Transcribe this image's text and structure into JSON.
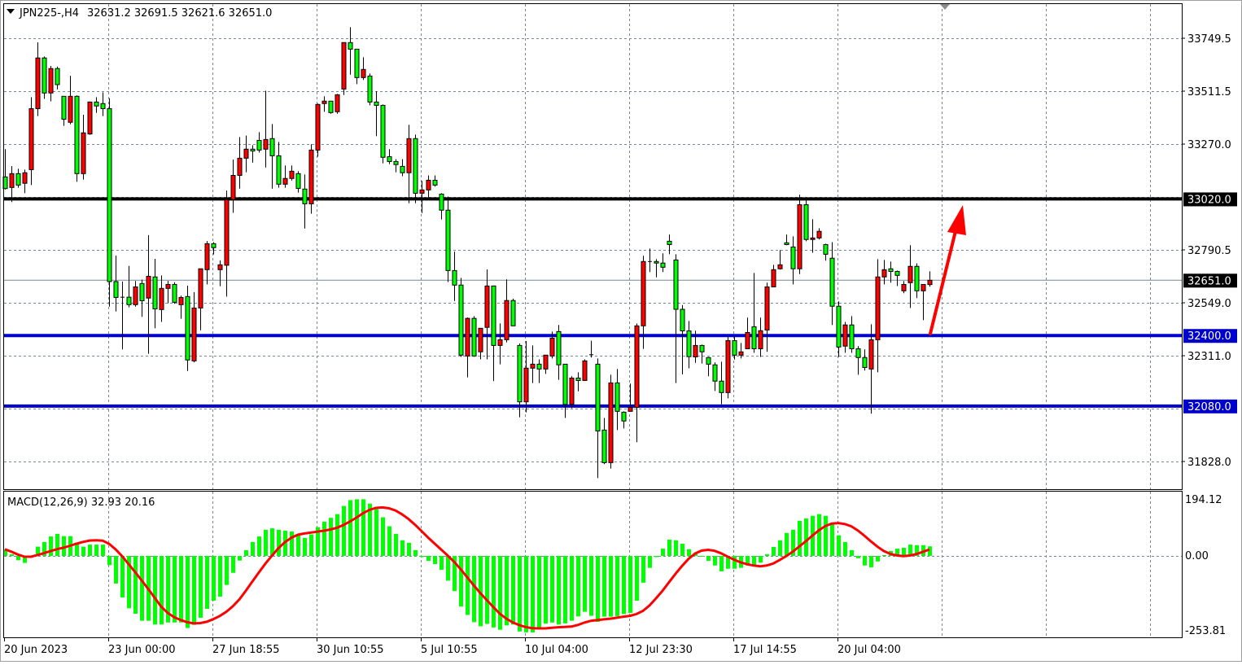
{
  "header": {
    "symbol": "JPN225-,H4",
    "ohlc_text": "32631.2 32691.5 32621.6 32651.0"
  },
  "macd_header": "MACD(12,26,9) 32.93 20.16",
  "colors": {
    "bull_body": "#ff0000",
    "bear_body": "#00ff00",
    "wick": "#000000",
    "grid": "#778899",
    "histogram": "#00ff00",
    "signal": "#ff0000",
    "resistance": "#000000",
    "support": "#0000cc",
    "arrow": "#ff0000"
  },
  "price_axis": {
    "ticks": [
      "33749.5",
      "33511.5",
      "33270.0",
      "32790.5",
      "32549.0",
      "32311.0",
      "31828.0"
    ],
    "current_price": "32651.0",
    "levels": [
      {
        "label": "33020.0",
        "value": 33020.0,
        "color": "#000000"
      },
      {
        "label": "32400.0",
        "value": 32400.0,
        "color": "#0000cc"
      },
      {
        "label": "32080.0",
        "value": 32080.0,
        "color": "#0000cc"
      }
    ]
  },
  "macd_axis": {
    "ticks": [
      "194.12",
      "0.00",
      "-253.81"
    ]
  },
  "time_axis": {
    "labels": [
      "20 Jun 2023",
      "23 Jun 00:00",
      "27 Jun 18:55",
      "30 Jun 10:55",
      "5 Jul 10:55",
      "10 Jul 04:00",
      "12 Jul 23:30",
      "17 Jul 14:55",
      "20 Jul 04:00"
    ]
  },
  "chart_data": [
    {
      "type": "candlestick",
      "title": "JPN225-,H4",
      "ylim": [
        31700,
        33850
      ],
      "grid": true,
      "ohlc": [
        [
          33120,
          33246,
          33063,
          33067
        ],
        [
          33072,
          33169,
          33006,
          33135
        ],
        [
          33135,
          33157,
          33071,
          33083
        ],
        [
          33091,
          33153,
          33046,
          33139
        ],
        [
          33153,
          33482,
          33083,
          33430
        ],
        [
          33430,
          33731,
          33396,
          33660
        ],
        [
          33660,
          33667,
          33474,
          33501
        ],
        [
          33501,
          33624,
          33463,
          33612
        ],
        [
          33612,
          33621,
          33517,
          33539
        ],
        [
          33486,
          33486,
          33352,
          33382
        ],
        [
          33368,
          33579,
          33359,
          33486
        ],
        [
          33486,
          33490,
          33098,
          33135
        ],
        [
          33135,
          33402,
          33108,
          33320
        ],
        [
          33315,
          33462,
          33311,
          33460
        ],
        [
          33460,
          33482,
          33411,
          33442
        ],
        [
          33453,
          33504,
          33396,
          33430
        ],
        [
          33430,
          33477,
          32531,
          32645
        ],
        [
          32645,
          32763,
          32509,
          32573
        ],
        [
          32573,
          32645,
          32337,
          32574
        ],
        [
          32574,
          32716,
          32528,
          32540
        ],
        [
          32540,
          32648,
          32531,
          32621
        ],
        [
          32636,
          32654,
          32485,
          32558
        ],
        [
          32570,
          32856,
          32317,
          32669
        ],
        [
          32666,
          32748,
          32433,
          32521
        ],
        [
          32518,
          32673,
          32462,
          32614
        ],
        [
          32614,
          32648,
          32547,
          32632
        ],
        [
          32632,
          32642,
          32544,
          32551
        ],
        [
          32540,
          32581,
          32476,
          32573
        ],
        [
          32577,
          32626,
          32239,
          32289
        ],
        [
          32285,
          32597,
          32278,
          32525
        ],
        [
          32525,
          32703,
          32424,
          32703
        ],
        [
          32699,
          32829,
          32632,
          32817
        ],
        [
          32817,
          32824,
          32768,
          32799
        ],
        [
          32699,
          32741,
          32624,
          32721
        ],
        [
          32719,
          33058,
          32577,
          33017
        ],
        [
          33017,
          33199,
          32957,
          33127
        ],
        [
          33127,
          33301,
          33067,
          33205
        ],
        [
          33205,
          33308,
          33141,
          33246
        ],
        [
          33246,
          33264,
          33185,
          33238
        ],
        [
          33286,
          33323,
          33231,
          33242
        ],
        [
          33246,
          33511,
          33163,
          33290
        ],
        [
          33294,
          33360,
          33067,
          33216
        ],
        [
          33216,
          33279,
          33071,
          33087
        ],
        [
          33087,
          33172,
          33071,
          33113
        ],
        [
          33113,
          33172,
          33104,
          33146
        ],
        [
          33135,
          33146,
          33049,
          33068
        ],
        [
          33065,
          33131,
          32886,
          32998
        ],
        [
          32998,
          33268,
          32953,
          33242
        ],
        [
          33242,
          33453,
          33212,
          33449
        ],
        [
          33453,
          33486,
          33416,
          33464
        ],
        [
          33464,
          33464,
          33407,
          33412
        ],
        [
          33416,
          33497,
          33407,
          33493
        ],
        [
          33519,
          33730,
          33492,
          33730
        ],
        [
          33730,
          33800,
          33584,
          33700
        ],
        [
          33700,
          33700,
          33541,
          33571
        ],
        [
          33571,
          33663,
          33560,
          33608
        ],
        [
          33578,
          33589,
          33445,
          33460
        ],
        [
          33460,
          33509,
          33305,
          33445
        ],
        [
          33445,
          33449,
          33182,
          33209
        ],
        [
          33212,
          33246,
          33178,
          33190
        ],
        [
          33190,
          33201,
          33141,
          33176
        ],
        [
          33168,
          33201,
          33123,
          33139
        ],
        [
          33139,
          33357,
          33001,
          33294
        ],
        [
          33294,
          33312,
          33001,
          33046
        ],
        [
          33046,
          33102,
          32956,
          33061
        ],
        [
          33061,
          33127,
          33028,
          33105
        ],
        [
          33105,
          33127,
          33076,
          33083
        ],
        [
          33042,
          33046,
          32927,
          32969
        ],
        [
          32969,
          33031,
          32643,
          32695
        ],
        [
          32695,
          32781,
          32557,
          32629
        ],
        [
          32629,
          32662,
          32303,
          32311
        ],
        [
          32307,
          32482,
          32210,
          32478
        ],
        [
          32478,
          32488,
          32304,
          32307
        ],
        [
          32326,
          32433,
          32292,
          32433
        ],
        [
          32437,
          32700,
          32292,
          32625
        ],
        [
          32625,
          32625,
          32193,
          32355
        ],
        [
          32355,
          32455,
          32269,
          32381
        ],
        [
          32381,
          32655,
          32369,
          32559
        ],
        [
          32559,
          32567,
          32444,
          32444
        ],
        [
          32355,
          32364,
          32029,
          32099
        ],
        [
          32099,
          32375,
          32051,
          32252
        ],
        [
          32252,
          32355,
          32184,
          32270
        ],
        [
          32270,
          32292,
          32184,
          32248
        ],
        [
          32248,
          32311,
          32226,
          32311
        ],
        [
          32307,
          32418,
          32296,
          32388
        ],
        [
          32418,
          32448,
          32199,
          32267
        ],
        [
          32270,
          32270,
          32026,
          32087
        ],
        [
          32087,
          32215,
          32070,
          32207
        ],
        [
          32207,
          32233,
          32147,
          32196
        ],
        [
          32196,
          32292,
          32196,
          32285
        ],
        [
          32313,
          32377,
          32300,
          32313
        ],
        [
          32270,
          32296,
          31753,
          31967
        ],
        [
          31971,
          32026,
          31816,
          31823
        ],
        [
          31823,
          32222,
          31796,
          32185
        ],
        [
          32185,
          32248,
          31971,
          32056
        ],
        [
          32052,
          32056,
          31978,
          32012
        ],
        [
          32056,
          32182,
          32056,
          32074
        ],
        [
          32074,
          32455,
          31916,
          32444
        ],
        [
          32444,
          32762,
          32339,
          32736
        ],
        [
          32736,
          32795,
          32688,
          32736
        ],
        [
          32736,
          32747,
          32664,
          32729
        ],
        [
          32729,
          32773,
          32688,
          32710
        ],
        [
          32828,
          32858,
          32769,
          32813
        ],
        [
          32743,
          32769,
          32184,
          32519
        ],
        [
          32519,
          32538,
          32224,
          32421
        ],
        [
          32421,
          32466,
          32251,
          32304
        ],
        [
          32303,
          32422,
          32276,
          32355
        ],
        [
          32355,
          32359,
          32273,
          32326
        ],
        [
          32300,
          32303,
          32215,
          32270
        ],
        [
          32267,
          32278,
          32148,
          32193
        ],
        [
          32193,
          32281,
          32088,
          32141
        ],
        [
          32141,
          32396,
          32115,
          32377
        ],
        [
          32377,
          32396,
          32291,
          32311
        ],
        [
          32311,
          32366,
          32296,
          32326
        ],
        [
          32340,
          32481,
          32340,
          32414
        ],
        [
          32440,
          32684,
          32322,
          32340
        ],
        [
          32340,
          32481,
          32303,
          32422
        ],
        [
          32425,
          32640,
          32326,
          32621
        ],
        [
          32621,
          32721,
          32621,
          32699
        ],
        [
          32703,
          32788,
          32699,
          32721
        ],
        [
          32821,
          32858,
          32810,
          32813
        ],
        [
          32802,
          32850,
          32632,
          32703
        ],
        [
          32703,
          33039,
          32679,
          32994
        ],
        [
          32994,
          33024,
          32828,
          32836
        ],
        [
          32836,
          32928,
          32776,
          32843
        ],
        [
          32843,
          32887,
          32836,
          32873
        ],
        [
          32813,
          32817,
          32740,
          32769
        ],
        [
          32751,
          32824,
          32448,
          32533
        ],
        [
          32533,
          32555,
          32303,
          32348
        ],
        [
          32352,
          32462,
          32322,
          32448
        ],
        [
          32448,
          32488,
          32322,
          32340
        ],
        [
          32340,
          32352,
          32222,
          32300
        ],
        [
          32300,
          32337,
          32241,
          32255
        ],
        [
          32248,
          32451,
          32045,
          32381
        ],
        [
          32381,
          32747,
          32233,
          32666
        ],
        [
          32666,
          32743,
          32632,
          32699
        ],
        [
          32703,
          32736,
          32640,
          32691
        ],
        [
          32691,
          32695,
          32625,
          32673
        ],
        [
          32603,
          32647,
          32592,
          32632
        ],
        [
          32640,
          32810,
          32525,
          32714
        ],
        [
          32714,
          32728,
          32570,
          32603
        ],
        [
          32603,
          32632,
          32470,
          32632
        ],
        [
          32631.2,
          32691.5,
          32621.6,
          32651.0
        ]
      ]
    },
    {
      "type": "bar",
      "title": "MACD(12,26,9) 32.93 20.16",
      "ylim": [
        -253.81,
        194.12
      ],
      "signal_method": "SMA 9",
      "macd": [
        23,
        6,
        -15,
        -24,
        -4,
        32,
        48,
        67,
        76,
        68,
        68,
        46,
        32,
        39,
        39,
        39,
        -32,
        -95,
        -143,
        -180,
        -199,
        -223,
        -223,
        -236,
        -236,
        -229,
        -229,
        -229,
        -248,
        -237,
        -213,
        -182,
        -154,
        -140,
        -100,
        -58,
        -16,
        20,
        48,
        67,
        90,
        95,
        90,
        87,
        84,
        73,
        62,
        74,
        99,
        118,
        131,
        144,
        172,
        192,
        195,
        195,
        180,
        161,
        133,
        102,
        76,
        54,
        45,
        20,
        -4,
        -17,
        -28,
        -48,
        -85,
        -121,
        -174,
        -203,
        -228,
        -242,
        -234,
        -246,
        -254,
        -239,
        -236,
        -260,
        -263,
        -263,
        -249,
        -233,
        -229,
        -236,
        -232,
        -223,
        -208,
        -192,
        -206,
        -227,
        -209,
        -209,
        -207,
        -200,
        -196,
        -154,
        -92,
        -41,
        -4,
        25,
        56,
        54,
        42,
        23,
        9,
        0,
        -17,
        -33,
        -53,
        -44,
        -44,
        -41,
        -33,
        -33,
        -23,
        6,
        31,
        54,
        79,
        90,
        121,
        129,
        138,
        144,
        138,
        109,
        71,
        48,
        20,
        -8,
        -33,
        -39,
        -19,
        3,
        17,
        25,
        28,
        39,
        37,
        37,
        33
      ]
    }
  ]
}
